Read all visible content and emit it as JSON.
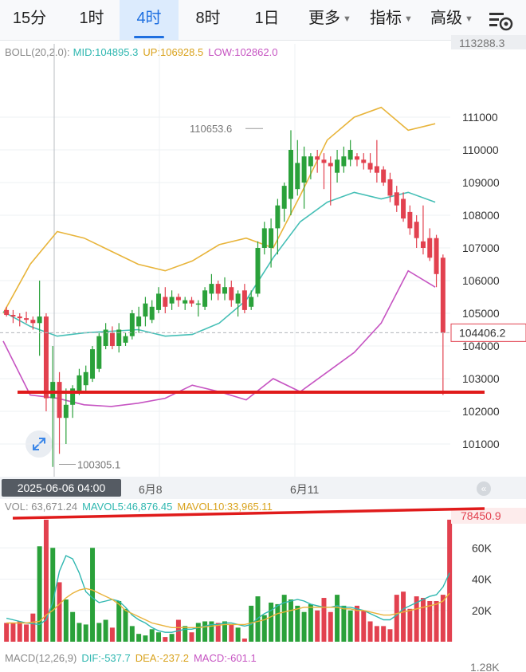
{
  "tabs": [
    {
      "label": "15分"
    },
    {
      "label": "1时"
    },
    {
      "label": "4时",
      "active": true
    },
    {
      "label": "8时"
    },
    {
      "label": "1日"
    },
    {
      "label": "更多",
      "caret": true
    },
    {
      "label": "指标",
      "caret": true
    },
    {
      "label": "高级",
      "caret": true
    }
  ],
  "toolbar": {
    "settings_icon": "chart-settings-icon"
  },
  "boll_legend": {
    "name": "BOLL(20,2.0):",
    "mid": "MID:104895.3",
    "up": "UP:106928.5",
    "low": "LOW:102862.0"
  },
  "vol_legend": {
    "vol": "VOL: 63,671.24",
    "mavol5": "MAVOL5:46,876.45",
    "mavol10": "MAVOL10:33,965.11"
  },
  "macd_legend": {
    "name": "MACD(12,26,9)",
    "dif": "DIF:-537.7",
    "dea": "DEA:-237.2",
    "macd": "MACD:-601.1"
  },
  "top_price_partial": "113288.3",
  "crosshair_date": "2025-06-06 04:00",
  "date_labels": [
    "6月8",
    "6月11"
  ],
  "current_price": "104406.2",
  "high_label": "110653.6",
  "low_label": "100305.1",
  "volume_top_value": "78450.9",
  "macd_axis_partial": "1.28K",
  "colors": {
    "up": "#2aa13a",
    "down": "#e2414f",
    "boll_up": "#e8b43a",
    "boll_mid": "#45bfb6",
    "boll_low": "#c654c2",
    "annotation": "#e01b1b",
    "ma5": "#2fb7b0",
    "ma10": "#e9b23a"
  },
  "chart_data": [
    {
      "type": "candlestick",
      "title": "",
      "ylim": [
        100000,
        112000
      ],
      "yticks": [
        101000,
        102000,
        103000,
        104000,
        105000,
        106000,
        107000,
        108000,
        109000,
        110000,
        111000
      ],
      "series": [
        {
          "name": "UP",
          "values": [
            105000,
            106500,
            107500,
            107300,
            106900,
            106500,
            106300,
            106600,
            107100,
            107300,
            107000,
            108600,
            110300,
            111000,
            111300,
            110600,
            110800
          ]
        },
        {
          "name": "MID",
          "values": [
            105050,
            104600,
            104300,
            104400,
            104450,
            104500,
            104300,
            104350,
            104700,
            105400,
            106700,
            107800,
            108400,
            108700,
            108500,
            108700,
            108400
          ]
        },
        {
          "name": "LOW",
          "values": [
            104150,
            102500,
            102400,
            102200,
            102150,
            102250,
            102400,
            102800,
            102600,
            102350,
            103000,
            102600,
            103200,
            103800,
            104700,
            106300,
            105800
          ]
        }
      ],
      "annotations": {
        "current_price": 104406.2,
        "high": 110653.6,
        "low": 100305.1,
        "horizontal_line": 102600
      },
      "candles": [
        {
          "o": 105100,
          "h": 105200,
          "l": 104900,
          "c": 104950
        },
        {
          "o": 104950,
          "h": 105100,
          "l": 104700,
          "c": 104900
        },
        {
          "o": 104900,
          "h": 105000,
          "l": 104600,
          "c": 104850
        },
        {
          "o": 104850,
          "h": 105050,
          "l": 104700,
          "c": 104800
        },
        {
          "o": 104800,
          "h": 104900,
          "l": 104500,
          "c": 104700
        },
        {
          "o": 104700,
          "h": 106000,
          "l": 103700,
          "c": 104900
        },
        {
          "o": 104900,
          "h": 105000,
          "l": 102000,
          "c": 102400
        },
        {
          "o": 102400,
          "h": 104000,
          "l": 100300,
          "c": 102900
        },
        {
          "o": 102900,
          "h": 103200,
          "l": 100700,
          "c": 101800
        },
        {
          "o": 101800,
          "h": 102700,
          "l": 101000,
          "c": 102200
        },
        {
          "o": 102200,
          "h": 102800,
          "l": 101800,
          "c": 102700
        },
        {
          "o": 102600,
          "h": 103300,
          "l": 102500,
          "c": 103100
        },
        {
          "o": 102800,
          "h": 103400,
          "l": 102600,
          "c": 103200
        },
        {
          "o": 103000,
          "h": 104000,
          "l": 102900,
          "c": 103900
        },
        {
          "o": 103300,
          "h": 104400,
          "l": 103200,
          "c": 104300
        },
        {
          "o": 104000,
          "h": 104700,
          "l": 103900,
          "c": 104500
        },
        {
          "o": 104400,
          "h": 104600,
          "l": 103900,
          "c": 104000
        },
        {
          "o": 104000,
          "h": 104700,
          "l": 103800,
          "c": 104500
        },
        {
          "o": 104100,
          "h": 104400,
          "l": 104000,
          "c": 104300
        },
        {
          "o": 104300,
          "h": 105100,
          "l": 104200,
          "c": 105000
        },
        {
          "o": 104600,
          "h": 105200,
          "l": 104400,
          "c": 104900
        },
        {
          "o": 104900,
          "h": 105500,
          "l": 104600,
          "c": 105300
        },
        {
          "o": 104800,
          "h": 105400,
          "l": 104700,
          "c": 105200
        },
        {
          "o": 105100,
          "h": 105800,
          "l": 105000,
          "c": 105600
        },
        {
          "o": 105500,
          "h": 105800,
          "l": 105000,
          "c": 105200
        },
        {
          "o": 105300,
          "h": 105700,
          "l": 105100,
          "c": 105500
        },
        {
          "o": 105500,
          "h": 105600,
          "l": 105200,
          "c": 105400
        },
        {
          "o": 105300,
          "h": 105500,
          "l": 105100,
          "c": 105400
        },
        {
          "o": 105400,
          "h": 105500,
          "l": 105200,
          "c": 105300
        },
        {
          "o": 105300,
          "h": 105400,
          "l": 104900,
          "c": 105300
        },
        {
          "o": 105200,
          "h": 105800,
          "l": 105100,
          "c": 105700
        },
        {
          "o": 105600,
          "h": 106200,
          "l": 105400,
          "c": 105900
        },
        {
          "o": 105900,
          "h": 106000,
          "l": 105400,
          "c": 105600
        },
        {
          "o": 105600,
          "h": 106100,
          "l": 105400,
          "c": 105800
        },
        {
          "o": 105800,
          "h": 106000,
          "l": 105200,
          "c": 105400
        },
        {
          "o": 105300,
          "h": 105700,
          "l": 104900,
          "c": 105600
        },
        {
          "o": 105700,
          "h": 105900,
          "l": 105000,
          "c": 105100
        },
        {
          "o": 105200,
          "h": 105700,
          "l": 105100,
          "c": 105500
        },
        {
          "o": 105600,
          "h": 107200,
          "l": 105500,
          "c": 107000
        },
        {
          "o": 107000,
          "h": 107800,
          "l": 106800,
          "c": 107600
        },
        {
          "o": 107000,
          "h": 107900,
          "l": 106400,
          "c": 107600
        },
        {
          "o": 107600,
          "h": 108500,
          "l": 106800,
          "c": 108300
        },
        {
          "o": 108200,
          "h": 109000,
          "l": 107800,
          "c": 108900
        },
        {
          "o": 108500,
          "h": 110600,
          "l": 108000,
          "c": 110000
        },
        {
          "o": 108800,
          "h": 110300,
          "l": 108600,
          "c": 109600
        },
        {
          "o": 109000,
          "h": 110100,
          "l": 108200,
          "c": 109800
        },
        {
          "o": 109500,
          "h": 109900,
          "l": 109100,
          "c": 109800
        },
        {
          "o": 109800,
          "h": 110000,
          "l": 109300,
          "c": 109700
        },
        {
          "o": 109700,
          "h": 109900,
          "l": 108800,
          "c": 109600
        },
        {
          "o": 109600,
          "h": 109800,
          "l": 108300,
          "c": 109500
        },
        {
          "o": 109300,
          "h": 110000,
          "l": 109000,
          "c": 109700
        },
        {
          "o": 109500,
          "h": 110100,
          "l": 109300,
          "c": 109800
        },
        {
          "o": 109700,
          "h": 110300,
          "l": 109500,
          "c": 110000
        },
        {
          "o": 109800,
          "h": 109900,
          "l": 109500,
          "c": 109700
        },
        {
          "o": 109700,
          "h": 109900,
          "l": 109400,
          "c": 109600
        },
        {
          "o": 109600,
          "h": 109900,
          "l": 109300,
          "c": 109400
        },
        {
          "o": 109500,
          "h": 110300,
          "l": 109000,
          "c": 109300
        },
        {
          "o": 109400,
          "h": 109500,
          "l": 108900,
          "c": 109000
        },
        {
          "o": 109100,
          "h": 109300,
          "l": 108400,
          "c": 108600
        },
        {
          "o": 108700,
          "h": 108900,
          "l": 108100,
          "c": 108300
        },
        {
          "o": 108500,
          "h": 108700,
          "l": 107800,
          "c": 107900
        },
        {
          "o": 108100,
          "h": 108300,
          "l": 107400,
          "c": 107600
        },
        {
          "o": 107800,
          "h": 108000,
          "l": 107000,
          "c": 107300
        },
        {
          "o": 107200,
          "h": 108300,
          "l": 106800,
          "c": 107000
        },
        {
          "o": 107300,
          "h": 107600,
          "l": 106600,
          "c": 106700
        },
        {
          "o": 107300,
          "h": 107400,
          "l": 105800,
          "c": 106200
        },
        {
          "o": 106700,
          "h": 106800,
          "l": 102500,
          "c": 104400
        }
      ]
    },
    {
      "type": "bar",
      "title": "",
      "ylim": [
        0,
        80000
      ],
      "yticks": [
        20000,
        40000,
        60000
      ],
      "ytick_labels": [
        "20K",
        "40K",
        "60K"
      ],
      "values": [
        12000,
        12000,
        13000,
        11000,
        18000,
        61000,
        78000,
        60000,
        38000,
        27000,
        19000,
        12000,
        11000,
        60000,
        12000,
        14000,
        9000,
        26000,
        21000,
        10000,
        5000,
        4000,
        8000,
        6000,
        3000,
        5000,
        14000,
        10000,
        6000,
        12000,
        13000,
        13000,
        12000,
        13000,
        11000,
        9000,
        2000,
        23000,
        29000,
        17000,
        25000,
        24000,
        30000,
        27000,
        23000,
        19000,
        24000,
        20000,
        28000,
        19000,
        30000,
        23000,
        20000,
        23000,
        20000,
        13000,
        10000,
        10000,
        8000,
        30000,
        32000,
        21000,
        29000,
        28000,
        26000,
        26000,
        30000,
        78000
      ],
      "series": [
        {
          "name": "MAVOL5",
          "values": [
            15000,
            14000,
            13000,
            12000,
            11500,
            11000,
            14000,
            25000,
            45000,
            55000,
            53000,
            44000,
            32000,
            28000,
            25000,
            26000,
            27000,
            26000,
            22000,
            17000,
            14000,
            12000,
            9000,
            7000,
            6000,
            6000,
            7000,
            8000,
            8000,
            9000,
            10000,
            11000,
            11000,
            12000,
            12000,
            11000,
            10000,
            11000,
            15000,
            18000,
            20000,
            23000,
            25000,
            26000,
            27000,
            26000,
            24000,
            23000,
            22000,
            22000,
            23000,
            22000,
            22000,
            21000,
            20000,
            18000,
            16000,
            14000,
            14000,
            17000,
            21000,
            23000,
            25000,
            27000,
            29000,
            30000,
            35000,
            44000
          ]
        },
        {
          "name": "MAVOL10",
          "values": [
            12000,
            12000,
            12000,
            12000,
            12500,
            13000,
            17000,
            20000,
            24000,
            28000,
            31000,
            33000,
            34000,
            33000,
            31000,
            29000,
            27000,
            24000,
            20000,
            18000,
            16000,
            14000,
            12000,
            11000,
            10000,
            9000,
            9000,
            9000,
            9000,
            9000,
            9500,
            10000,
            10500,
            11000,
            11000,
            11000,
            11000,
            12000,
            13000,
            14000,
            16000,
            18000,
            19000,
            20000,
            21000,
            22000,
            22000,
            22000,
            22000,
            22000,
            22000,
            21000,
            21000,
            20000,
            20000,
            19000,
            18000,
            17000,
            17000,
            18000,
            19000,
            20000,
            21000,
            22000,
            23000,
            24000,
            26000,
            31000
          ]
        }
      ]
    }
  ]
}
